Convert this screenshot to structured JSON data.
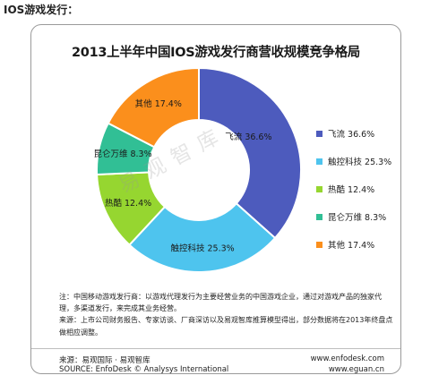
{
  "page": {
    "heading": "IOS游戏发行："
  },
  "chart_data": {
    "type": "pie",
    "title": "2013上半年中国IOS游戏发行商营收规模竞争格局",
    "slices": [
      {
        "name": "飞流",
        "value": 36.6,
        "label": "飞流 36.6%",
        "legend": "飞流 36.6%",
        "color": "#4d5bbd"
      },
      {
        "name": "触控科技",
        "value": 25.3,
        "label": "触控科技 25.3%",
        "legend": "触控科技 25.3%",
        "color": "#4ec4ee"
      },
      {
        "name": "热酷",
        "value": 12.4,
        "label": "热酷 12.4%",
        "legend": "热酷 12.4%",
        "color": "#96d630"
      },
      {
        "name": "昆仑万维",
        "value": 8.3,
        "label": "昆仑万维 8.3%",
        "legend": "昆仑万维 8.3%",
        "color": "#31bf95"
      },
      {
        "name": "其他",
        "value": 17.4,
        "label": "其他 17.4%",
        "legend": "其他 17.4%",
        "color": "#fb8f1c"
      }
    ],
    "legend_position": "right"
  },
  "watermark": "易观智库",
  "notes": {
    "note1": "注：中国移动游戏发行商：以游戏代理发行为主要经营业务的中国游戏企业，通过对游戏产品的独家代理，多渠道发行，来完成其业务经营。",
    "note2": "来源：上市公司财务报告、专家访谈、厂商深访以及易观智库推算模型得出，部分数据将在2013年终盘点做相应调整。"
  },
  "footer": {
    "source_cn": "来源：易观国际 · 易观智库",
    "source_en": "SOURCE: EnfoDesk © Analysys International",
    "url1": "www.enfodesk.com",
    "url2": "www.eguan.cn"
  }
}
